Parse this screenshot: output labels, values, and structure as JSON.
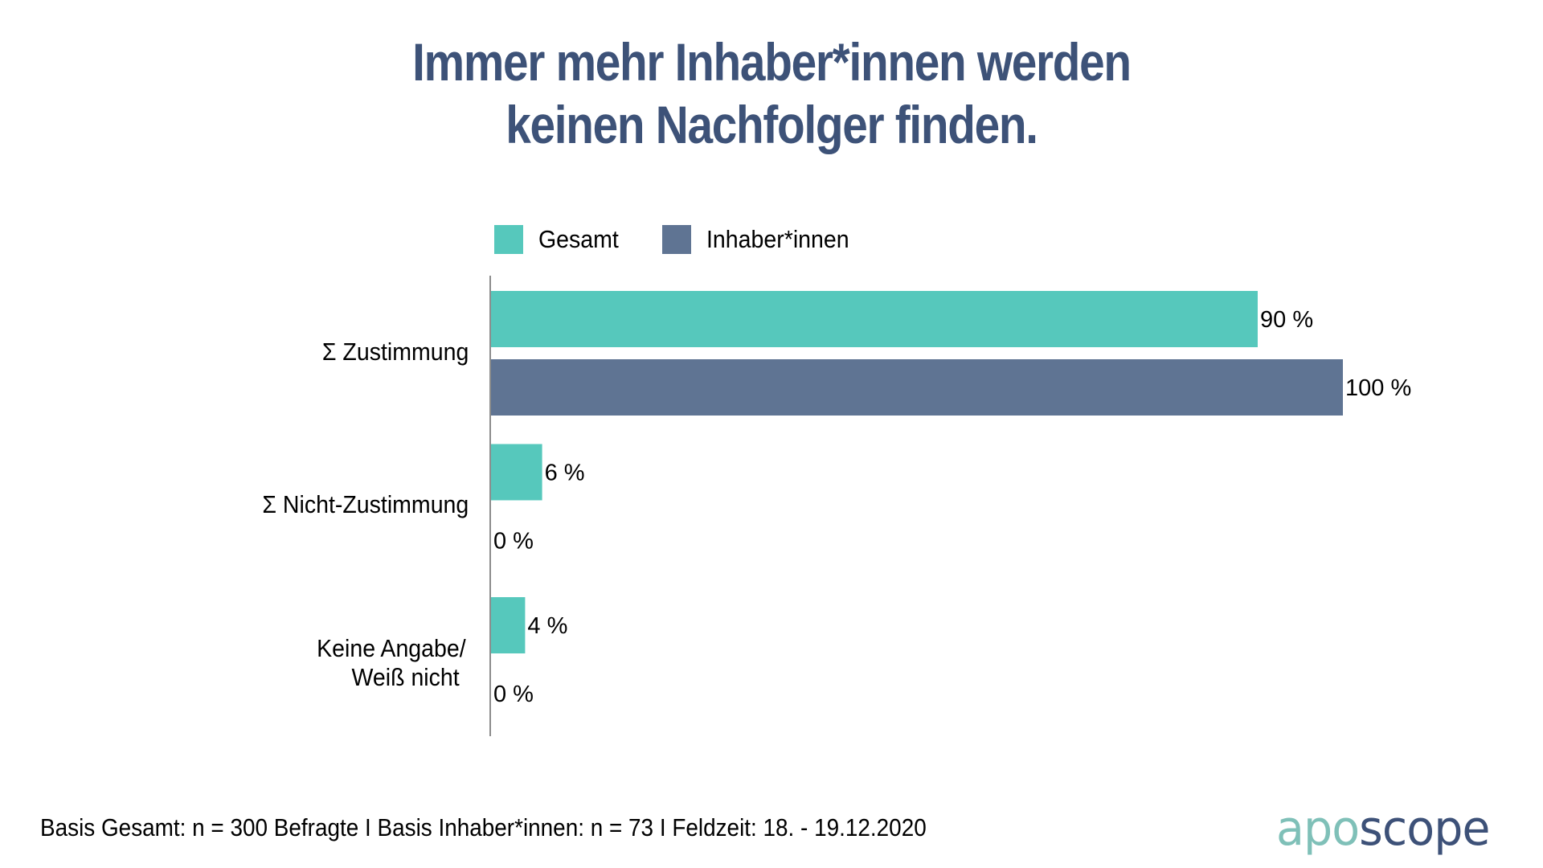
{
  "title": {
    "line1": "Immer mehr Inhaber*innen werden",
    "line2": "keinen Nachfolger finden."
  },
  "colors": {
    "title": "#3d5278",
    "gesamt": "#56c8bc",
    "inhaber": "#5f7493",
    "axis": "#666666",
    "logo_apo": "#7fc0b8",
    "logo_scope": "#3d5178"
  },
  "legend": {
    "items": [
      {
        "label": "Gesamt"
      },
      {
        "label": "Inhaber*innen"
      }
    ]
  },
  "chart_data": {
    "type": "bar",
    "orientation": "horizontal",
    "title": "Immer mehr Inhaber*innen werden keinen Nachfolger finden.",
    "categories": [
      "Σ Zustimmung",
      "Σ Nicht-Zustimmung",
      "Keine Angabe/ Weiß nicht"
    ],
    "category_lines": [
      [
        "Σ Zustimmung"
      ],
      [
        "Σ Nicht-Zustimmung"
      ],
      [
        "Keine Angabe/",
        "Weiß nicht"
      ]
    ],
    "series": [
      {
        "name": "Gesamt",
        "values": [
          90,
          6,
          4
        ],
        "labels": [
          "90 %",
          "6 %",
          "4 %"
        ]
      },
      {
        "name": "Inhaber*innen",
        "values": [
          100,
          0,
          0
        ],
        "labels": [
          "100 %",
          "0 %",
          "0 %"
        ]
      }
    ],
    "xlim": [
      0,
      100
    ],
    "unit": "%",
    "grid": false,
    "legend_position": "top",
    "xlabel": "",
    "ylabel": ""
  },
  "footer": {
    "text": "Basis Gesamt: n = 300 Befragte I Basis Inhaber*innen: n = 73 I Feldzeit: 18. - 19.12.2020"
  },
  "logo": {
    "part1": "apo",
    "part2": "scope"
  }
}
